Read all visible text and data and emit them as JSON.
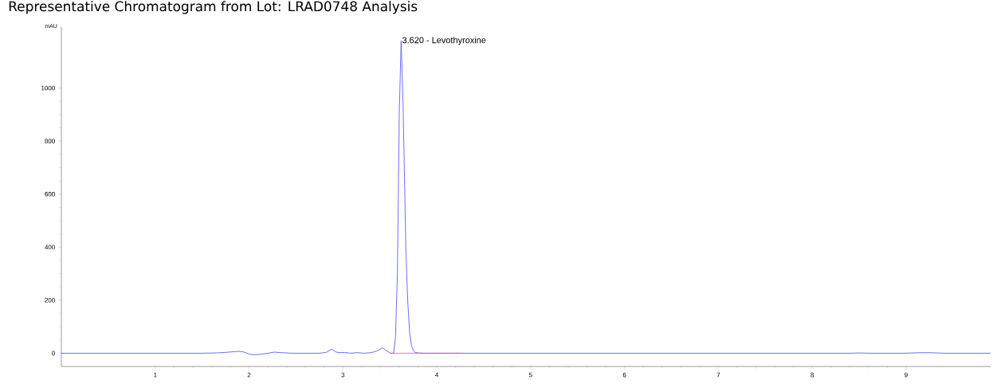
{
  "chart_data": {
    "type": "line",
    "title": "Representative Chromatogram from Lot: LRAD0748 Analysis",
    "ylabel": "mAU",
    "xlim": [
      0,
      9.9
    ],
    "ylim": [
      -50,
      1230
    ],
    "xticks": [
      1,
      2,
      3,
      4,
      5,
      6,
      7,
      8,
      9
    ],
    "yticks": [
      0,
      200,
      400,
      600,
      800,
      1000
    ],
    "marker": "none",
    "line_style": "solid",
    "annotations": [
      {
        "text": "3.620 -  Levothyroxine",
        "x": 3.62,
        "y": 1178
      }
    ],
    "series": [
      {
        "color": "#4b4bf0",
        "x": [
          0,
          0.5,
          1.0,
          1.5,
          1.65,
          1.75,
          1.85,
          1.9,
          1.95,
          2.0,
          2.05,
          2.12,
          2.2,
          2.27,
          2.35,
          2.45,
          2.6,
          2.75,
          2.82,
          2.88,
          2.93,
          2.97,
          3.02,
          3.08,
          3.15,
          3.22,
          3.3,
          3.36,
          3.42,
          3.47,
          3.51,
          3.54,
          3.56,
          3.58,
          3.59,
          3.6,
          3.62,
          3.64,
          3.66,
          3.67,
          3.69,
          3.71,
          3.73,
          3.75,
          3.77,
          3.8,
          3.85,
          3.9,
          4.2,
          5,
          6,
          7,
          8,
          8.4,
          8.5,
          8.6,
          9.0,
          9.15,
          9.25,
          9.4,
          9.9
        ],
        "values": [
          0,
          0,
          0,
          0,
          1,
          3,
          6,
          7,
          4,
          -3,
          -6,
          -4,
          0,
          4,
          2,
          0,
          0,
          0,
          3,
          15,
          4,
          2,
          3,
          0,
          2,
          0,
          2,
          8,
          20,
          8,
          0,
          0,
          60,
          300,
          589,
          900,
          1178,
          950,
          589,
          400,
          200,
          80,
          30,
          10,
          3,
          1,
          0,
          0,
          0,
          0,
          0,
          0,
          0,
          0,
          1,
          0,
          0,
          2,
          2,
          0,
          0
        ]
      },
      {
        "color": "#ff44cc",
        "x": [
          3.5,
          4.26
        ],
        "values": [
          0,
          0
        ]
      }
    ]
  }
}
